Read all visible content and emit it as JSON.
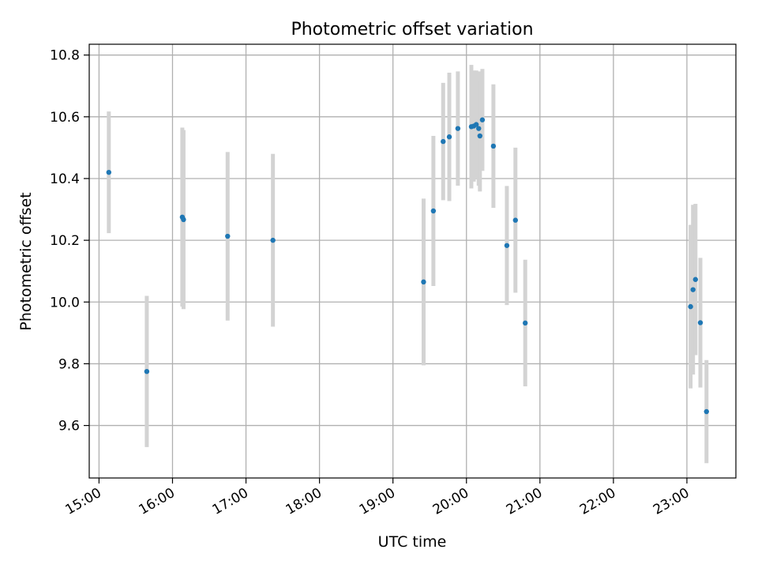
{
  "chart_data": {
    "type": "scatter",
    "title": "Photometric offset variation",
    "xlabel": "UTC time",
    "ylabel": "Photometric offset",
    "xlim": [
      "14:52",
      "23:40"
    ],
    "ylim": [
      9.43,
      10.835
    ],
    "x_ticks": [
      "15:00",
      "16:00",
      "17:00",
      "18:00",
      "19:00",
      "20:00",
      "21:00",
      "22:00",
      "23:00"
    ],
    "y_ticks": [
      "9.6",
      "9.8",
      "10.0",
      "10.2",
      "10.4",
      "10.6",
      "10.8"
    ],
    "grid": true,
    "colors": {
      "point": "#1f77b4",
      "errorbar": "#d3d3d3",
      "grid": "#b0b0b0",
      "axes": "#000000"
    },
    "series": [
      {
        "points": [
          {
            "t": "15:08",
            "y": 10.42,
            "err": 0.197
          },
          {
            "t": "15:39",
            "y": 9.775,
            "err": 0.245
          },
          {
            "t": "16:08",
            "y": 10.275,
            "err": 0.29
          },
          {
            "t": "16:09",
            "y": 10.267,
            "err": 0.29
          },
          {
            "t": "16:45",
            "y": 10.213,
            "err": 0.273
          },
          {
            "t": "17:22",
            "y": 10.2,
            "err": 0.28
          },
          {
            "t": "19:25",
            "y": 10.065,
            "err": 0.27
          },
          {
            "t": "19:33",
            "y": 10.295,
            "err": 0.243
          },
          {
            "t": "19:41",
            "y": 10.52,
            "err": 0.19
          },
          {
            "t": "19:46",
            "y": 10.535,
            "err": 0.208
          },
          {
            "t": "19:53",
            "y": 10.562,
            "err": 0.185
          },
          {
            "t": "20:04",
            "y": 10.568,
            "err": 0.2
          },
          {
            "t": "20:06",
            "y": 10.57,
            "err": 0.18
          },
          {
            "t": "20:08",
            "y": 10.575,
            "err": 0.175
          },
          {
            "t": "20:10",
            "y": 10.562,
            "err": 0.185
          },
          {
            "t": "20:11",
            "y": 10.538,
            "err": 0.18
          },
          {
            "t": "20:13",
            "y": 10.59,
            "err": 0.165
          },
          {
            "t": "20:22",
            "y": 10.505,
            "err": 0.2
          },
          {
            "t": "20:33",
            "y": 10.183,
            "err": 0.193
          },
          {
            "t": "20:40",
            "y": 10.265,
            "err": 0.235
          },
          {
            "t": "20:48",
            "y": 9.932,
            "err": 0.205
          },
          {
            "t": "23:03",
            "y": 9.985,
            "err": 0.265
          },
          {
            "t": "23:05",
            "y": 10.04,
            "err": 0.275
          },
          {
            "t": "23:07",
            "y": 10.073,
            "err": 0.245
          },
          {
            "t": "23:11",
            "y": 9.933,
            "err": 0.21
          },
          {
            "t": "23:16",
            "y": 9.645,
            "err": 0.167
          }
        ]
      }
    ]
  }
}
